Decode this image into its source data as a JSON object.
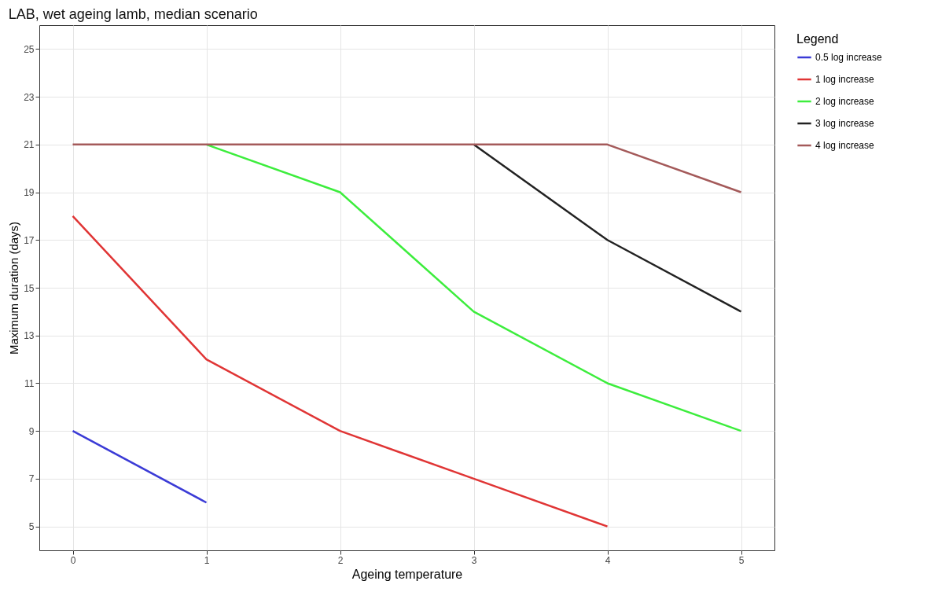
{
  "chart_data": {
    "type": "line",
    "title": "LAB, wet ageing lamb, median scenario",
    "xlabel": "Ageing temperature",
    "ylabel": "Maximum duration (days)",
    "legend_title": "Legend",
    "x": [
      0,
      1,
      2,
      3,
      4,
      5
    ],
    "series": [
      {
        "name": "0.5 log increase",
        "color": "#3b3bd6",
        "values": [
          9,
          6,
          null,
          null,
          null,
          null
        ]
      },
      {
        "name": "1 log increase",
        "color": "#e03535",
        "values": [
          18,
          12,
          9,
          7,
          5,
          null
        ]
      },
      {
        "name": "2 log increase",
        "color": "#3ded3d",
        "values": [
          null,
          21,
          19,
          14,
          11,
          9
        ]
      },
      {
        "name": "3 log increase",
        "color": "#222222",
        "values": [
          null,
          null,
          null,
          21,
          17,
          14
        ]
      },
      {
        "name": "4 log increase",
        "color": "#a45a5a",
        "values": [
          21,
          21,
          21,
          21,
          21,
          19
        ]
      }
    ],
    "xlim": [
      -0.25,
      5.25
    ],
    "xticks": [
      0,
      1,
      2,
      3,
      4,
      5
    ],
    "ylim": [
      4,
      26
    ],
    "yticks": [
      5,
      7,
      9,
      11,
      13,
      15,
      17,
      19,
      21,
      23,
      25
    ],
    "grid": true,
    "legend": "right",
    "line_style": "solid",
    "marker": "none"
  }
}
